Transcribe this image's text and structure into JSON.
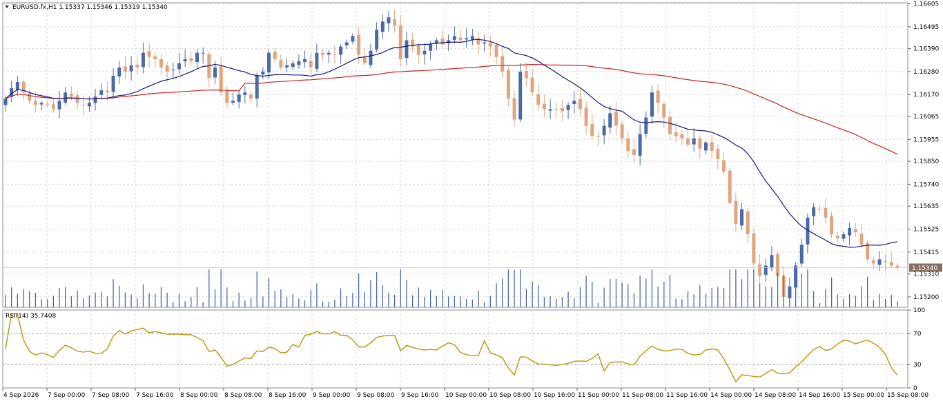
{
  "symbol_header": "EURUSD.fx,H1  1.15337 1.15346 1.15319 1.15340",
  "rsi_header": "RSI(14) 35.7408",
  "current_price_label": "1.15340",
  "colors": {
    "bull": "#4a6aa5",
    "bear": "#e0a57f",
    "ma_fast": "#15157a",
    "ma_slow": "#cc2020",
    "rsi_line": "#b8960a",
    "grid": "#d8d8d8",
    "price_tag": "#8a7060",
    "volume": "#4a6aa5"
  },
  "chart_data": [
    {
      "type": "candlestick",
      "title": "EURUSD.fx,H1",
      "ylim": [
        1.1515,
        1.1661
      ],
      "y_ticks": [
        "1.16605",
        "1.16495",
        "1.16390",
        "1.16280",
        "1.16170",
        "1.16065",
        "1.15955",
        "1.15850",
        "1.15740",
        "1.15635",
        "1.15525",
        "1.15415",
        "1.15310",
        "1.15200"
      ],
      "x_ticks": [
        "4 Sep 2026",
        "7 Sep 00:00",
        "7 Sep 08:00",
        "7 Sep 16:00",
        "8 Sep 00:00",
        "8 Sep 08:00",
        "8 Sep 16:00",
        "9 Sep 00:00",
        "9 Sep 08:00",
        "9 Sep 16:00",
        "10 Sep 00:00",
        "10 Sep 08:00",
        "10 Sep 16:00",
        "11 Sep 00:00",
        "11 Sep 08:00",
        "11 Sep 16:00",
        "14 Sep 00:00",
        "14 Sep 08:00",
        "14 Sep 16:00",
        "15 Sep 00:00",
        "15 Sep 08:00"
      ],
      "closes": [
        1.1615,
        1.162,
        1.1623,
        1.1618,
        1.1614,
        1.1612,
        1.1613,
        1.1612,
        1.161,
        1.1614,
        1.1618,
        1.1616,
        1.1613,
        1.1612,
        1.1613,
        1.1616,
        1.1619,
        1.1618,
        1.1626,
        1.163,
        1.1628,
        1.1631,
        1.163,
        1.1637,
        1.1635,
        1.1634,
        1.163,
        1.1628,
        1.1629,
        1.1632,
        1.1634,
        1.1633,
        1.1637,
        1.1637,
        1.1625,
        1.163,
        1.1618,
        1.1613,
        1.1614,
        1.1617,
        1.1618,
        1.1615,
        1.1626,
        1.1628,
        1.1637,
        1.1634,
        1.163,
        1.1631,
        1.1632,
        1.1633,
        1.1634,
        1.163,
        1.1637,
        1.1636,
        1.1637,
        1.1636,
        1.164,
        1.1642,
        1.1645,
        1.1636,
        1.1632,
        1.1638,
        1.1648,
        1.1652,
        1.1654,
        1.165,
        1.1634,
        1.1643,
        1.164,
        1.1636,
        1.1638,
        1.1641,
        1.1643,
        1.1641,
        1.1643,
        1.1645,
        1.1643,
        1.1644,
        1.1645,
        1.1641,
        1.1642,
        1.164,
        1.1635,
        1.1628,
        1.1615,
        1.1605,
        1.1628,
        1.1625,
        1.1618,
        1.1612,
        1.161,
        1.161,
        1.161,
        1.1609,
        1.1612,
        1.1614,
        1.161,
        1.1602,
        1.1597,
        1.1597,
        1.1602,
        1.1608,
        1.1602,
        1.1596,
        1.159,
        1.1588,
        1.1598,
        1.1606,
        1.1618,
        1.1613,
        1.1606,
        1.1598,
        1.1597,
        1.1596,
        1.1593,
        1.1596,
        1.1591,
        1.1594,
        1.159,
        1.1586,
        1.158,
        1.1565,
        1.1555,
        1.1562,
        1.155,
        1.1536,
        1.153,
        1.1535,
        1.154,
        1.153,
        1.152,
        1.1525,
        1.1535,
        1.1545,
        1.1558,
        1.1563,
        1.1562,
        1.1558,
        1.155,
        1.1548,
        1.155,
        1.1553,
        1.1551,
        1.1545,
        1.1538,
        1.1536,
        1.1538,
        1.1537,
        1.1535,
        1.1534
      ],
      "volume_note": "Volume histogram drawn under candles",
      "series": [
        {
          "type": "line"
        },
        {
          "type": "line"
        }
      ]
    },
    {
      "type": "line",
      "title": "RSI(14) 35.7408",
      "ylim": [
        0,
        100
      ],
      "y_ticks": [
        "100",
        "70",
        "30",
        "0"
      ],
      "levels": [
        70,
        30
      ]
    }
  ]
}
